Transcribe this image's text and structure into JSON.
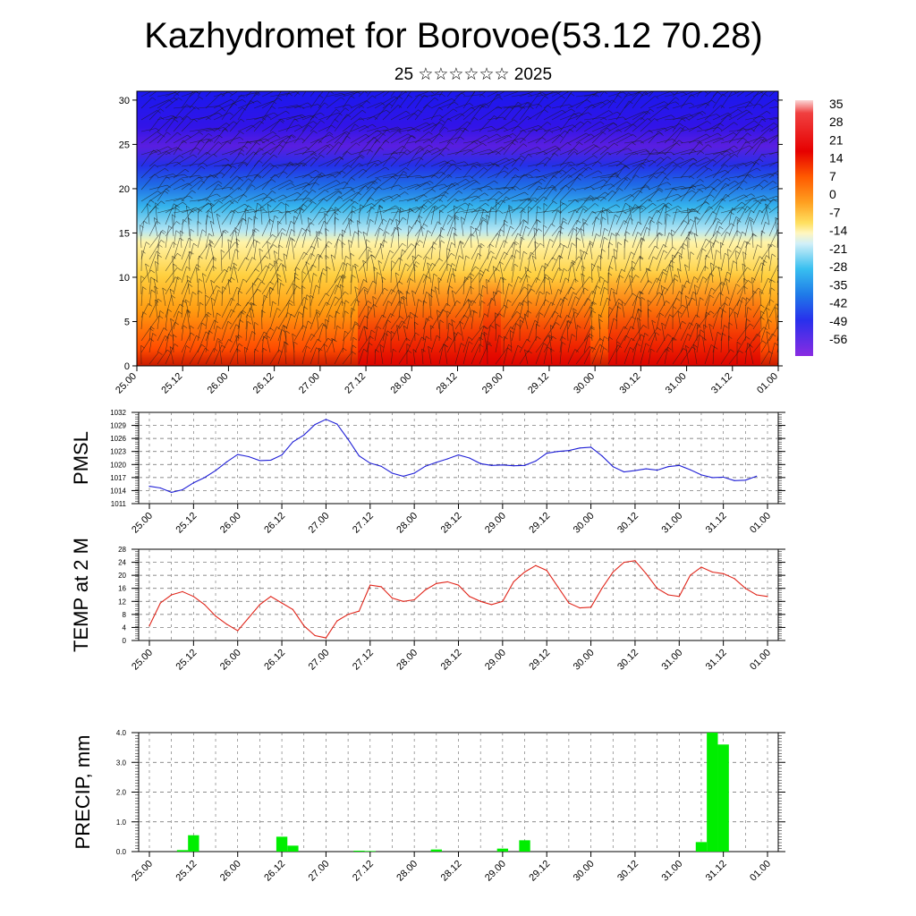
{
  "page": {
    "title": "Kazhydromet for Borovoe(53.12 70.28)",
    "subtitle": "25 ☆☆☆☆☆☆ 2025"
  },
  "colors": {
    "pmsl_line": "#1f1fd6",
    "temp_line": "#e0251a",
    "precip_bar": "#00ee00",
    "grid": "#555555"
  },
  "chart_data": [
    {
      "id": "cross_section",
      "type": "heatmap",
      "title": "",
      "ylim": [
        0,
        31
      ],
      "yticks": [
        0,
        5,
        10,
        15,
        20,
        25,
        30
      ],
      "x_labels": [
        "25.00",
        "25.12",
        "26.00",
        "26.12",
        "27.00",
        "27.12",
        "28.00",
        "28.12",
        "29.00",
        "29.12",
        "30.00",
        "30.12",
        "31.00",
        "31.12",
        "01.00"
      ],
      "colorbar": {
        "labels": [
          "35",
          "28",
          "21",
          "14",
          "7",
          "0",
          "-7",
          "-14",
          "-21",
          "-28",
          "-35",
          "-42",
          "-49",
          "-56"
        ]
      }
    },
    {
      "id": "pmsl",
      "type": "line",
      "ylabel": "PMSL",
      "ylim": [
        1011,
        1032
      ],
      "yticks": [
        "1011",
        "1014",
        "1017",
        "1020",
        "1023",
        "1026",
        "1029",
        "1032"
      ],
      "x_labels": [
        "25.00",
        "25.12",
        "26.00",
        "26.12",
        "27.00",
        "27.12",
        "28.00",
        "28.12",
        "29.00",
        "29.12",
        "30.00",
        "30.12",
        "31.00",
        "31.12",
        "01.00"
      ],
      "values": [
        1015.0,
        1014.6,
        1013.6,
        1014.2,
        1015.8,
        1017.0,
        1018.6,
        1020.6,
        1022.3,
        1021.8,
        1020.9,
        1021.0,
        1022.2,
        1025.2,
        1026.8,
        1029.2,
        1030.4,
        1029.3,
        1025.8,
        1022.0,
        1020.3,
        1019.6,
        1018.0,
        1017.3,
        1018.0,
        1019.6,
        1020.5,
        1021.3,
        1022.2,
        1021.5,
        1020.2,
        1019.8,
        1019.9,
        1019.7,
        1019.8,
        1020.8,
        1022.6,
        1023.0,
        1023.2,
        1023.8,
        1024.0,
        1022.0,
        1019.5,
        1018.3,
        1018.6,
        1019.0,
        1018.7,
        1019.5,
        1019.8,
        1018.8,
        1017.6,
        1017.0,
        1017.1,
        1016.3,
        1016.4,
        1017.3
      ]
    },
    {
      "id": "temp",
      "type": "line",
      "ylabel": "TEMP at 2 M",
      "ylim": [
        0,
        28
      ],
      "yticks": [
        "0",
        "4",
        "8",
        "12",
        "16",
        "20",
        "24",
        "28"
      ],
      "x_labels": [
        "25.00",
        "25.12",
        "26.00",
        "26.12",
        "27.00",
        "27.12",
        "28.00",
        "28.12",
        "29.00",
        "29.12",
        "30.00",
        "30.12",
        "31.00",
        "31.12",
        "01.00"
      ],
      "values": [
        4.5,
        11.5,
        14.0,
        15.0,
        13.5,
        11.0,
        7.5,
        5.0,
        3.0,
        7.0,
        11.0,
        13.5,
        11.5,
        9.5,
        4.5,
        1.5,
        0.8,
        6.0,
        8.0,
        9.0,
        17.0,
        16.5,
        13.0,
        12.0,
        12.5,
        15.5,
        17.5,
        18.0,
        17.0,
        13.5,
        12.0,
        11.0,
        12.0,
        18.0,
        21.0,
        23.0,
        21.5,
        16.5,
        11.5,
        10.0,
        10.2,
        16.0,
        21.0,
        24.0,
        24.5,
        20.5,
        16.0,
        14.0,
        13.5,
        20.0,
        22.5,
        21.0,
        20.5,
        19.0,
        16.0,
        14.0,
        13.5
      ]
    },
    {
      "id": "precip",
      "type": "bar",
      "ylabel": "PRECIP, mm",
      "ylim": [
        0,
        4
      ],
      "yticks": [
        "0.0",
        "1.0",
        "2.0",
        "3.0",
        "4.0"
      ],
      "x_labels": [
        "25.00",
        "25.12",
        "26.00",
        "26.12",
        "27.00",
        "27.12",
        "28.00",
        "28.12",
        "29.00",
        "29.12",
        "30.00",
        "30.12",
        "31.00",
        "31.12",
        "01.00"
      ],
      "values": [
        0,
        0,
        0,
        0.05,
        0.55,
        0,
        0,
        0,
        0,
        0,
        0,
        0,
        0.5,
        0.2,
        0,
        0,
        0,
        0,
        0,
        0.03,
        0.02,
        0,
        0,
        0,
        0,
        0,
        0.07,
        0,
        0,
        0,
        0,
        0,
        0.1,
        0,
        0.38,
        0,
        0,
        0,
        0,
        0,
        0,
        0,
        0,
        0,
        0,
        0,
        0,
        0,
        0,
        0,
        0.32,
        4.0,
        3.6,
        0,
        0,
        0,
        0
      ]
    }
  ]
}
